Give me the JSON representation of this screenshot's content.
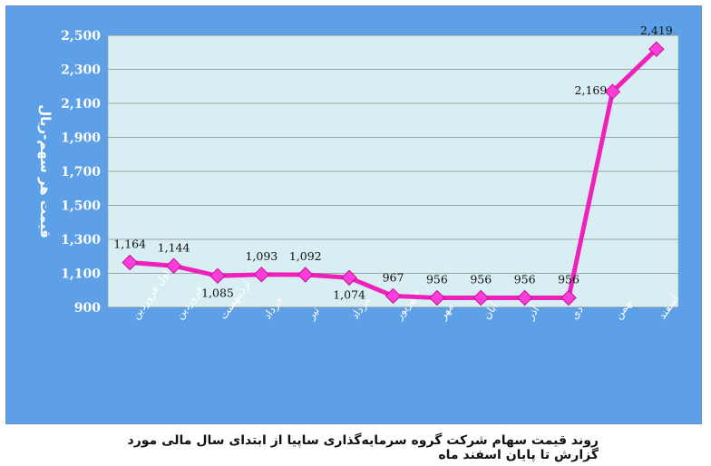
{
  "chart_data": {
    "type": "line",
    "categories": [
      "اول فروردین",
      "فروردین",
      "اردیبهشت",
      "خرداد",
      "تیر",
      "مرداد",
      "شهریور",
      "مهر",
      "آبان",
      "آذر",
      "دی",
      "بهمن",
      "اسفند"
    ],
    "series": [
      {
        "values": [
          1164,
          1144,
          1085,
          1093,
          1092,
          1074,
          967,
          956,
          956,
          956,
          956,
          2169,
          2419
        ]
      }
    ],
    "data_labels": [
      "1,164",
      "1,144",
      "1,085",
      "1,093",
      "1,092",
      "1,074",
      "967",
      "956",
      "956",
      "956",
      "956",
      "2,169",
      "2,419"
    ],
    "ylabel": "قیمت هر سهم-ریال",
    "xlabel": "",
    "ylim": [
      900,
      2500
    ],
    "yticks": [
      900,
      1100,
      1300,
      1500,
      1700,
      1900,
      2100,
      2300,
      2500
    ],
    "ytick_labels": [
      "900",
      "1,100",
      "1,300",
      "1,500",
      "1,700",
      "1,900",
      "2,100",
      "2,300",
      "2,500"
    ],
    "grid": true,
    "colors": {
      "frame": "#5ea0e8",
      "plot": "#d8eef2",
      "line": "#ee22bb",
      "marker": "#ff3ddb"
    }
  },
  "caption": "روند قیمت سهام شرکت گروه سرمایه‌گذاری ساپیا از ابتدای سال مالی مورد گزارش تا پایان اسفند ماه"
}
